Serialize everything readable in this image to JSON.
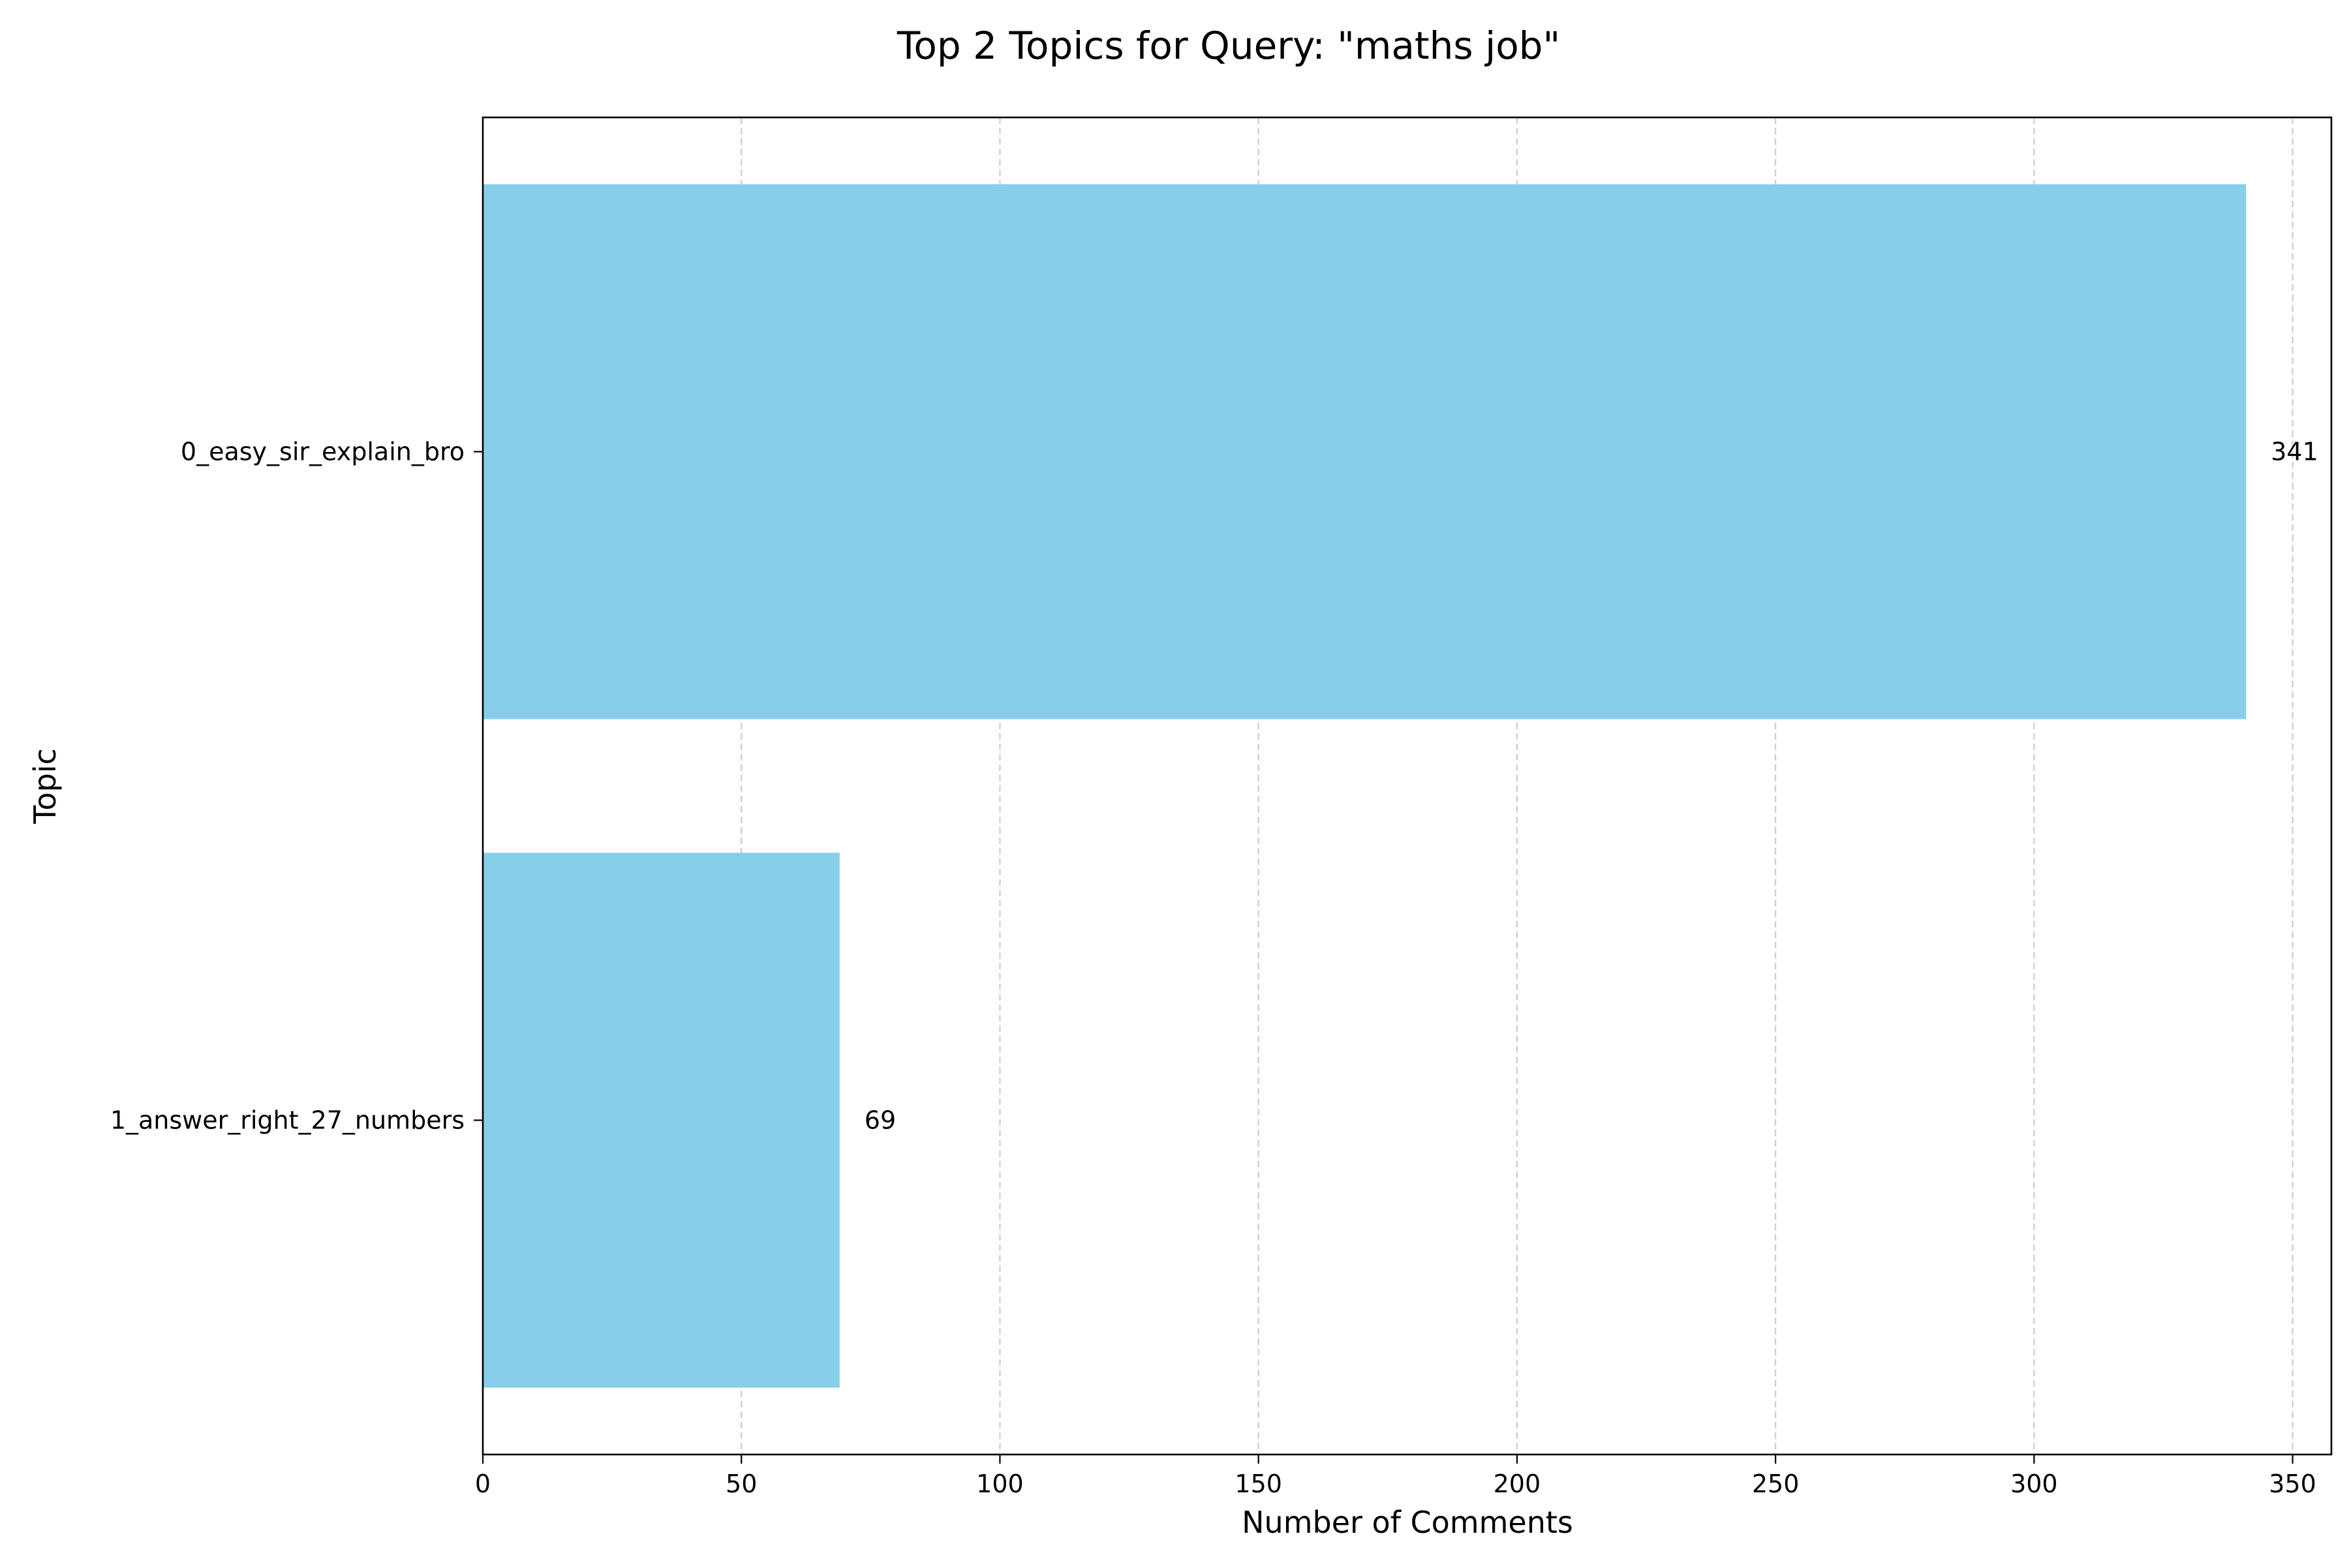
{
  "chart_data": {
    "type": "bar",
    "orientation": "horizontal",
    "title": "Top 2 Topics for Query: \"maths job\"",
    "xlabel": "Number of Comments",
    "ylabel": "Topic",
    "categories": [
      "0_easy_sir_explain_bro",
      "1_answer_right_27_numbers"
    ],
    "values": [
      341,
      69
    ],
    "value_labels": [
      "341",
      "69"
    ],
    "xlim": [
      0,
      357.5
    ],
    "xticks": [
      0,
      50,
      100,
      150,
      200,
      250,
      300,
      350
    ],
    "xtick_labels": [
      "0",
      "50",
      "100",
      "150",
      "200",
      "250",
      "300",
      "350"
    ],
    "grid": {
      "x": true,
      "y": false,
      "style": "dashed"
    },
    "bar_color": "#87ceeb",
    "grid_color": "#cccccc",
    "legend": "none"
  }
}
